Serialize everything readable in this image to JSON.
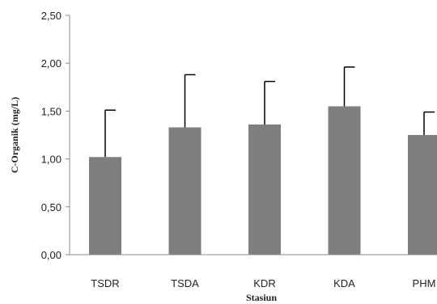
{
  "chart_data": {
    "type": "bar",
    "title": "",
    "xlabel": "Stasiun",
    "ylabel": "C-Organik  (mg/L)",
    "ylim": [
      0,
      2.5
    ],
    "y_ticks": [
      "0,00",
      "0,50",
      "1,00",
      "1,50",
      "2,00",
      "2,50"
    ],
    "y_tick_values": [
      0,
      0.5,
      1.0,
      1.5,
      2.0,
      2.5
    ],
    "grid": false,
    "legend": "none",
    "categories": [
      "TSDR",
      "TSDA",
      "KDR",
      "KDA",
      "PHM"
    ],
    "values": [
      1.02,
      1.33,
      1.36,
      1.55,
      1.25
    ],
    "error_upper": [
      0.49,
      0.55,
      0.45,
      0.41,
      0.24
    ],
    "colors": {
      "bar": "#7f7f7f",
      "error_bar": "#000000",
      "axis": "#8c8c8c"
    }
  }
}
